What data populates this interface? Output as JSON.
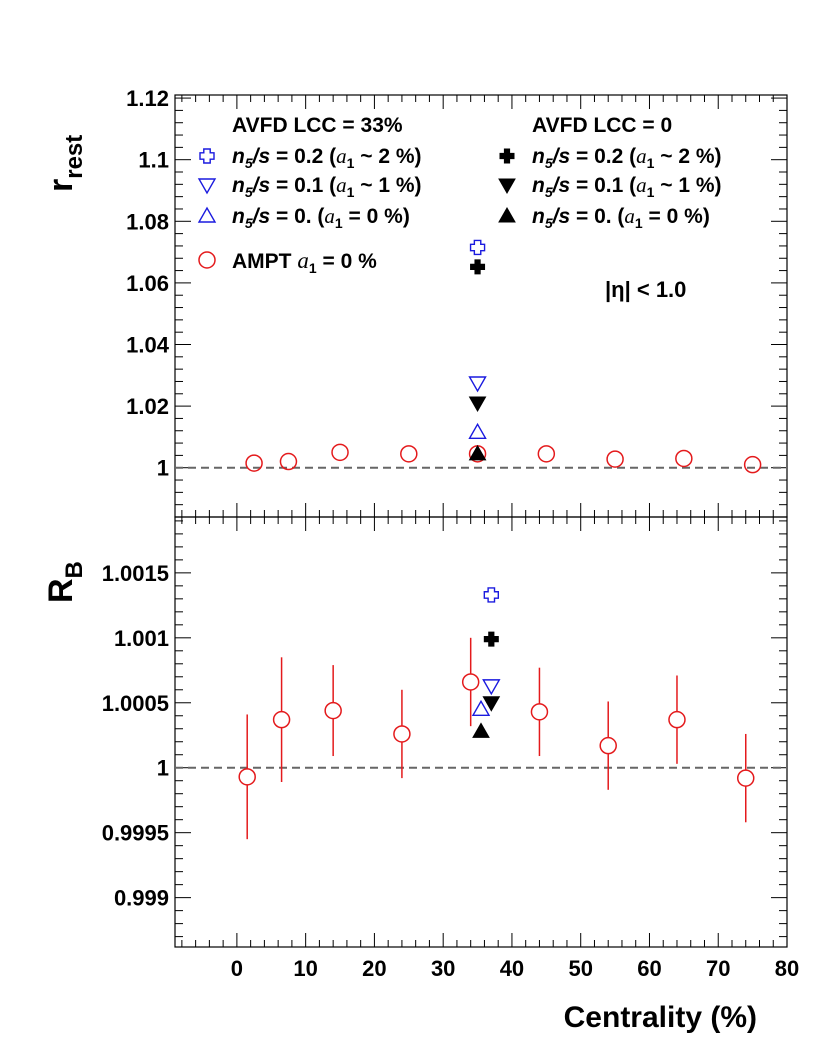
{
  "chart_data": [
    {
      "type": "scatter",
      "panel": "top",
      "ylabel_main": "r",
      "ylabel_sub": "rest",
      "ylim": [
        0.984,
        1.121
      ],
      "xlim": [
        -9,
        80
      ],
      "yticks": [
        1,
        1.02,
        1.04,
        1.06,
        1.08,
        1.1,
        1.12
      ],
      "ytick_labels": [
        "1",
        "1.02",
        "1.04",
        "1.06",
        "1.08",
        "1.1",
        "1.12"
      ],
      "reference_line": 1,
      "annotation": "|η| < 1.0",
      "series": [
        {
          "name": "AMPT a1 = 0 %",
          "marker": "open-circle",
          "color": "#e41a1c",
          "points": [
            {
              "x": 2.5,
              "y": 1.0015
            },
            {
              "x": 7.5,
              "y": 1.002
            },
            {
              "x": 15,
              "y": 1.005
            },
            {
              "x": 25,
              "y": 1.0045
            },
            {
              "x": 35,
              "y": 1.0045
            },
            {
              "x": 45,
              "y": 1.0045
            },
            {
              "x": 55,
              "y": 1.0028
            },
            {
              "x": 65,
              "y": 1.003
            },
            {
              "x": 75,
              "y": 1.001
            }
          ]
        },
        {
          "name": "AVFD LCC=33% n5/s=0.2",
          "marker": "open-cross",
          "color": "#1a1adf",
          "points": [
            {
              "x": 35,
              "y": 1.0715
            }
          ]
        },
        {
          "name": "AVFD LCC=0 n5/s=0.2",
          "marker": "filled-cross",
          "color": "#000000",
          "points": [
            {
              "x": 35,
              "y": 1.0652
            }
          ]
        },
        {
          "name": "AVFD LCC=33% n5/s=0.1",
          "marker": "open-tri-down",
          "color": "#1a1adf",
          "points": [
            {
              "x": 35,
              "y": 1.0275
            }
          ]
        },
        {
          "name": "AVFD LCC=0 n5/s=0.1",
          "marker": "filled-tri-down",
          "color": "#000000",
          "points": [
            {
              "x": 35,
              "y": 1.021
            }
          ]
        },
        {
          "name": "AVFD LCC=33% n5/s=0.",
          "marker": "open-tri-up",
          "color": "#1a1adf",
          "points": [
            {
              "x": 35,
              "y": 1.0115
            }
          ]
        },
        {
          "name": "AVFD LCC=0 n5/s=0.",
          "marker": "filled-tri-up",
          "color": "#000000",
          "points": [
            {
              "x": 35,
              "y": 1.0045
            }
          ]
        }
      ]
    },
    {
      "type": "scatter",
      "panel": "bottom",
      "ylabel_main": "R",
      "ylabel_sub": "B",
      "xlabel": "Centrality (%)",
      "ylim": [
        0.99862,
        1.00193
      ],
      "xlim": [
        -9,
        80
      ],
      "yticks": [
        0.999,
        0.9995,
        1,
        1.0005,
        1.001,
        1.0015
      ],
      "ytick_labels": [
        "0.999",
        "0.9995",
        "1",
        "1.0005",
        "1.001",
        "1.0015"
      ],
      "xticks": [
        0,
        10,
        20,
        30,
        40,
        50,
        60,
        70,
        80
      ],
      "xtick_labels": [
        "0",
        "10",
        "20",
        "30",
        "40",
        "50",
        "60",
        "70",
        "80"
      ],
      "reference_line": 1,
      "series": [
        {
          "name": "AMPT a1 = 0 %",
          "marker": "open-circle",
          "color": "#e41a1c",
          "points": [
            {
              "x": 1.5,
              "y": 0.99993,
              "err": 0.00048
            },
            {
              "x": 6.5,
              "y": 1.00037,
              "err": 0.00048
            },
            {
              "x": 14,
              "y": 1.00044,
              "err": 0.00035
            },
            {
              "x": 24,
              "y": 1.00026,
              "err": 0.00034
            },
            {
              "x": 34,
              "y": 1.00066,
              "err": 0.00034
            },
            {
              "x": 44,
              "y": 1.00043,
              "err": 0.00034
            },
            {
              "x": 54,
              "y": 1.00017,
              "err": 0.00034
            },
            {
              "x": 64,
              "y": 1.00037,
              "err": 0.00034
            },
            {
              "x": 74,
              "y": 0.99992,
              "err": 0.00034
            }
          ]
        },
        {
          "name": "AVFD LCC=33% n5/s=0.2",
          "marker": "open-cross",
          "color": "#1a1adf",
          "points": [
            {
              "x": 37,
              "y": 1.00133
            }
          ]
        },
        {
          "name": "AVFD LCC=0 n5/s=0.2",
          "marker": "filled-cross",
          "color": "#000000",
          "points": [
            {
              "x": 37,
              "y": 1.00099
            }
          ]
        },
        {
          "name": "AVFD LCC=33% n5/s=0.1",
          "marker": "open-tri-down",
          "color": "#1a1adf",
          "points": [
            {
              "x": 37,
              "y": 1.00063
            }
          ]
        },
        {
          "name": "AVFD LCC=0 n5/s=0.1",
          "marker": "filled-tri-down",
          "color": "#000000",
          "points": [
            {
              "x": 37,
              "y": 1.0005
            }
          ]
        },
        {
          "name": "AVFD LCC=33% n5/s=0.",
          "marker": "open-tri-up",
          "color": "#1a1adf",
          "points": [
            {
              "x": 35.5,
              "y": 1.00045
            }
          ]
        },
        {
          "name": "AVFD LCC=0 n5/s=0.",
          "marker": "filled-tri-up",
          "color": "#000000",
          "points": [
            {
              "x": 35.5,
              "y": 1.00028
            }
          ]
        }
      ]
    }
  ],
  "legend": {
    "col1_header": "AVFD LCC = 33%",
    "col2_header": "AVFD LCC = 0",
    "n5s_symbol": "n",
    "n5s_sub": "5",
    "n5s_tail": "/s",
    "rows": [
      {
        "value": " = 0.2 (",
        "a1": "a",
        "a1_sub": "1",
        "pct": " ~ 2 %)"
      },
      {
        "value": " = 0.1 (",
        "a1": "a",
        "a1_sub": "1",
        "pct": " ~ 1 %)"
      },
      {
        "value": " = 0.   (",
        "a1": "a",
        "a1_sub": "1",
        "pct": " = 0 %)"
      }
    ],
    "ampt_label": "AMPT",
    "ampt_a": "a",
    "ampt_a_sub": "1",
    "ampt_tail": " = 0 %"
  }
}
